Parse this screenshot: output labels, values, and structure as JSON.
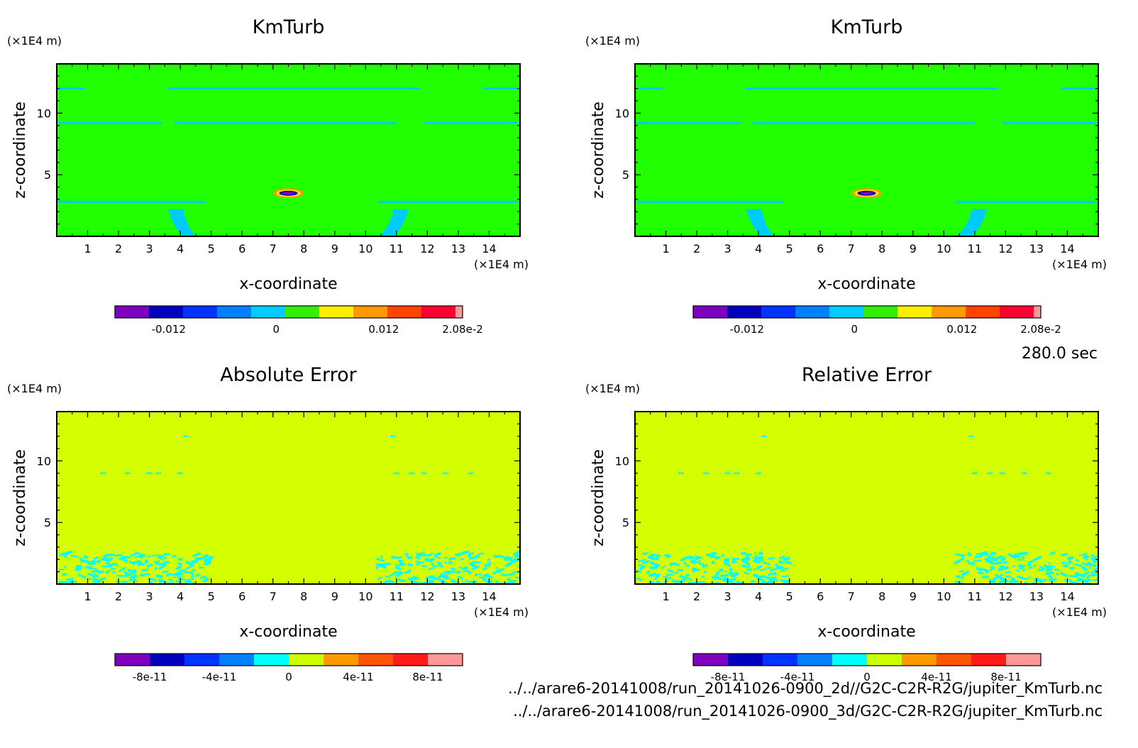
{
  "colors": {
    "field": [
      "#7f00bf",
      "#0000bf",
      "#0033ff",
      "#007fff",
      "#00ccff",
      "#33ee00",
      "#ffee00",
      "#ff9900",
      "#ff4400",
      "#ff0033",
      "#ff9999"
    ],
    "error": [
      "#7f00bf",
      "#0000bf",
      "#0033ff",
      "#007fff",
      "#00ffff",
      "#ccff00",
      "#ff9900",
      "#ff5500",
      "#ff1a1a",
      "#ff9999"
    ],
    "background_field": "#22ff00",
    "background_error": "#d4ff00",
    "frame": "#000000"
  },
  "time_label": "280.0 sec",
  "files": [
    "../../arare6-20141008/run_20141026-0900_2d//G2C-C2R-R2G/jupiter_KmTurb.nc",
    "../../arare6-20141008/run_20141026-0900_3d/G2C-C2R-R2G/jupiter_KmTurb.nc"
  ],
  "chart_data": [
    {
      "type": "heatmap",
      "title": "KmTurb",
      "xlabel": "x-coordinate",
      "ylabel": "z-coordinate",
      "x_unit": "(×1E4 m)",
      "y_unit": "(×1E4 m)",
      "xlim": [
        0,
        15
      ],
      "ylim": [
        0,
        14
      ],
      "xticks": [
        "1",
        "2",
        "3",
        "4",
        "5",
        "6",
        "7",
        "8",
        "9",
        "10",
        "11",
        "12",
        "13",
        "14"
      ],
      "yticks": [
        "5",
        "10"
      ],
      "colorbar": {
        "range": [
          -0.018,
          0.0208
        ],
        "tick_labels": [
          "-0.012",
          "0",
          "0.012",
          "2.08e-2"
        ],
        "tick_values": [
          -0.012,
          0,
          0.012,
          0.0208
        ]
      },
      "field": "KmTurb"
    },
    {
      "type": "heatmap",
      "title": "KmTurb",
      "xlabel": "x-coordinate",
      "ylabel": "z-coordinate",
      "x_unit": "(×1E4 m)",
      "y_unit": "(×1E4 m)",
      "xlim": [
        0,
        15
      ],
      "ylim": [
        0,
        14
      ],
      "xticks": [
        "1",
        "2",
        "3",
        "4",
        "5",
        "6",
        "7",
        "8",
        "9",
        "10",
        "11",
        "12",
        "13",
        "14"
      ],
      "yticks": [
        "5",
        "10"
      ],
      "colorbar": {
        "range": [
          -0.018,
          0.0208
        ],
        "tick_labels": [
          "-0.012",
          "0",
          "0.012",
          "2.08e-2"
        ],
        "tick_values": [
          -0.012,
          0,
          0.012,
          0.0208
        ]
      },
      "field": "KmTurb"
    },
    {
      "type": "heatmap",
      "title": "Absolute Error",
      "xlabel": "x-coordinate",
      "ylabel": "z-coordinate",
      "x_unit": "(×1E4 m)",
      "y_unit": "(×1E4 m)",
      "xlim": [
        0,
        15
      ],
      "ylim": [
        0,
        14
      ],
      "xticks": [
        "1",
        "2",
        "3",
        "4",
        "5",
        "6",
        "7",
        "8",
        "9",
        "10",
        "11",
        "12",
        "13",
        "14"
      ],
      "yticks": [
        "5",
        "10"
      ],
      "colorbar": {
        "range": [
          -1e-10,
          1e-10
        ],
        "tick_labels": [
          "-8e-11",
          "-4e-11",
          "0",
          "4e-11",
          "8e-11"
        ],
        "tick_values": [
          -8e-11,
          -4e-11,
          0,
          4e-11,
          8e-11
        ]
      },
      "field": "error"
    },
    {
      "type": "heatmap",
      "title": "Relative Error",
      "xlabel": "x-coordinate",
      "ylabel": "z-coordinate",
      "x_unit": "(×1E4 m)",
      "y_unit": "(×1E4 m)",
      "xlim": [
        0,
        15
      ],
      "ylim": [
        0,
        14
      ],
      "xticks": [
        "1",
        "2",
        "3",
        "4",
        "5",
        "6",
        "7",
        "8",
        "9",
        "10",
        "11",
        "12",
        "13",
        "14"
      ],
      "yticks": [
        "5",
        "10"
      ],
      "colorbar": {
        "range": [
          -1e-10,
          1e-10
        ],
        "tick_labels": [
          "-8e-11",
          "-4e-11",
          "0",
          "4e-11",
          "8e-11"
        ],
        "tick_values": [
          -8e-11,
          -4e-11,
          0,
          4e-11,
          8e-11
        ]
      },
      "field": "error"
    }
  ]
}
